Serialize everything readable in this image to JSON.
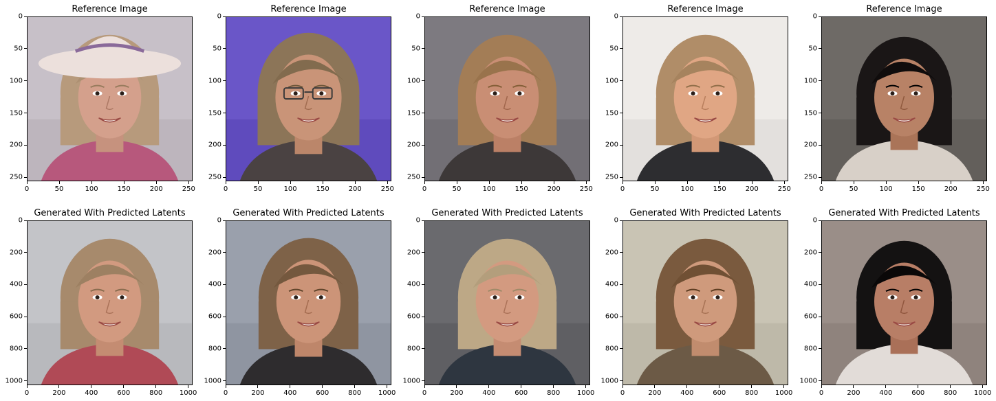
{
  "figure": {
    "panels": [
      {
        "title": "Reference Image",
        "row": 0,
        "col": 0,
        "x_ticks": [
          "0",
          "50",
          "100",
          "150",
          "200",
          "250"
        ],
        "y_ticks": [
          "0",
          "50",
          "100",
          "150",
          "200",
          "250"
        ],
        "x_max": 255,
        "y_max": 255,
        "portrait": {
          "bg": "#c7c0c8",
          "skin": "#d4a08c",
          "hair": "#b79a7c",
          "shirt": "#b7587c",
          "hat": true,
          "hat_color": "#ece0dc",
          "glasses": false,
          "face_scale": 1.0
        }
      },
      {
        "title": "Reference Image",
        "row": 0,
        "col": 1,
        "x_ticks": [
          "0",
          "50",
          "100",
          "150",
          "200",
          "250"
        ],
        "y_ticks": [
          "0",
          "50",
          "100",
          "150",
          "200",
          "250"
        ],
        "x_max": 255,
        "y_max": 255,
        "portrait": {
          "bg": "#6a56c8",
          "skin": "#c99478",
          "hair": "#8c7558",
          "shirt": "#4a4242",
          "hat": false,
          "glasses": true,
          "face_scale": 1.05
        }
      },
      {
        "title": "Reference Image",
        "row": 0,
        "col": 2,
        "x_ticks": [
          "0",
          "50",
          "100",
          "150",
          "200",
          "250"
        ],
        "y_ticks": [
          "0",
          "50",
          "100",
          "150",
          "200",
          "250"
        ],
        "x_max": 255,
        "y_max": 255,
        "portrait": {
          "bg": "#7d7a80",
          "skin": "#c98e74",
          "hair": "#a37d56",
          "shirt": "#3d3838",
          "hat": false,
          "glasses": false,
          "face_scale": 1.0
        }
      },
      {
        "title": "Reference Image",
        "row": 0,
        "col": 3,
        "x_ticks": [
          "0",
          "50",
          "100",
          "150",
          "200",
          "250"
        ],
        "y_ticks": [
          "0",
          "50",
          "100",
          "150",
          "200",
          "250"
        ],
        "x_max": 255,
        "y_max": 255,
        "portrait": {
          "bg": "#eeebe8",
          "skin": "#e0a684",
          "hair": "#b08d68",
          "shirt": "#2d2d30",
          "hat": false,
          "glasses": false,
          "face_scale": 1.0
        }
      },
      {
        "title": "Reference Image",
        "row": 0,
        "col": 4,
        "x_ticks": [
          "0",
          "50",
          "100",
          "150",
          "200",
          "250"
        ],
        "y_ticks": [
          "0",
          "50",
          "100",
          "150",
          "200",
          "250"
        ],
        "x_max": 255,
        "y_max": 255,
        "portrait": {
          "bg": "#6e6a66",
          "skin": "#b88266",
          "hair": "#1a1616",
          "shirt": "#d8d0c8",
          "hat": false,
          "glasses": false,
          "face_scale": 0.95
        }
      },
      {
        "title": "Generated With Predicted Latents",
        "row": 1,
        "col": 0,
        "x_ticks": [
          "0",
          "200",
          "400",
          "600",
          "800",
          "1000"
        ],
        "y_ticks": [
          "0",
          "200",
          "400",
          "600",
          "800",
          "1000"
        ],
        "x_max": 1023,
        "y_max": 1023,
        "portrait": {
          "bg": "#c3c4c8",
          "skin": "#d29a80",
          "hair": "#a78a6c",
          "shirt": "#b04a56",
          "hat": false,
          "glasses": false,
          "face_scale": 1.0
        }
      },
      {
        "title": "Generated With Predicted Latents",
        "row": 1,
        "col": 1,
        "x_ticks": [
          "0",
          "200",
          "400",
          "600",
          "800",
          "1000"
        ],
        "y_ticks": [
          "0",
          "200",
          "400",
          "600",
          "800",
          "1000"
        ],
        "x_max": 1023,
        "y_max": 1023,
        "portrait": {
          "bg": "#9aa0ac",
          "skin": "#cc9478",
          "hair": "#7e6248",
          "shirt": "#2e2c2e",
          "hat": false,
          "glasses": false,
          "face_scale": 1.02
        }
      },
      {
        "title": "Generated With Predicted Latents",
        "row": 1,
        "col": 2,
        "x_ticks": [
          "0",
          "200",
          "400",
          "600",
          "800",
          "1000"
        ],
        "y_ticks": [
          "0",
          "200",
          "400",
          "600",
          "800",
          "1000"
        ],
        "x_max": 1023,
        "y_max": 1023,
        "portrait": {
          "bg": "#6a6a6e",
          "skin": "#d39a80",
          "hair": "#bda886",
          "shirt": "#2e3640",
          "hat": false,
          "glasses": false,
          "face_scale": 1.0
        }
      },
      {
        "title": "Generated With Predicted Latents",
        "row": 1,
        "col": 3,
        "x_ticks": [
          "0",
          "200",
          "400",
          "600",
          "800",
          "1000"
        ],
        "y_ticks": [
          "0",
          "200",
          "400",
          "600",
          "800",
          "1000"
        ],
        "x_max": 1023,
        "y_max": 1023,
        "portrait": {
          "bg": "#c9c4b4",
          "skin": "#cf9a7c",
          "hair": "#7a5a3e",
          "shirt": "#6c5a46",
          "hat": false,
          "glasses": false,
          "face_scale": 1.0
        }
      },
      {
        "title": "Generated With Predicted Latents",
        "row": 1,
        "col": 4,
        "x_ticks": [
          "0",
          "200",
          "400",
          "600",
          "800",
          "1000"
        ],
        "y_ticks": [
          "0",
          "200",
          "400",
          "600",
          "800",
          "1000"
        ],
        "x_max": 1023,
        "y_max": 1023,
        "portrait": {
          "bg": "#9a8e88",
          "skin": "#b87e66",
          "hair": "#141212",
          "shirt": "#e2dcd8",
          "hat": false,
          "glasses": false,
          "face_scale": 0.95
        }
      }
    ]
  }
}
